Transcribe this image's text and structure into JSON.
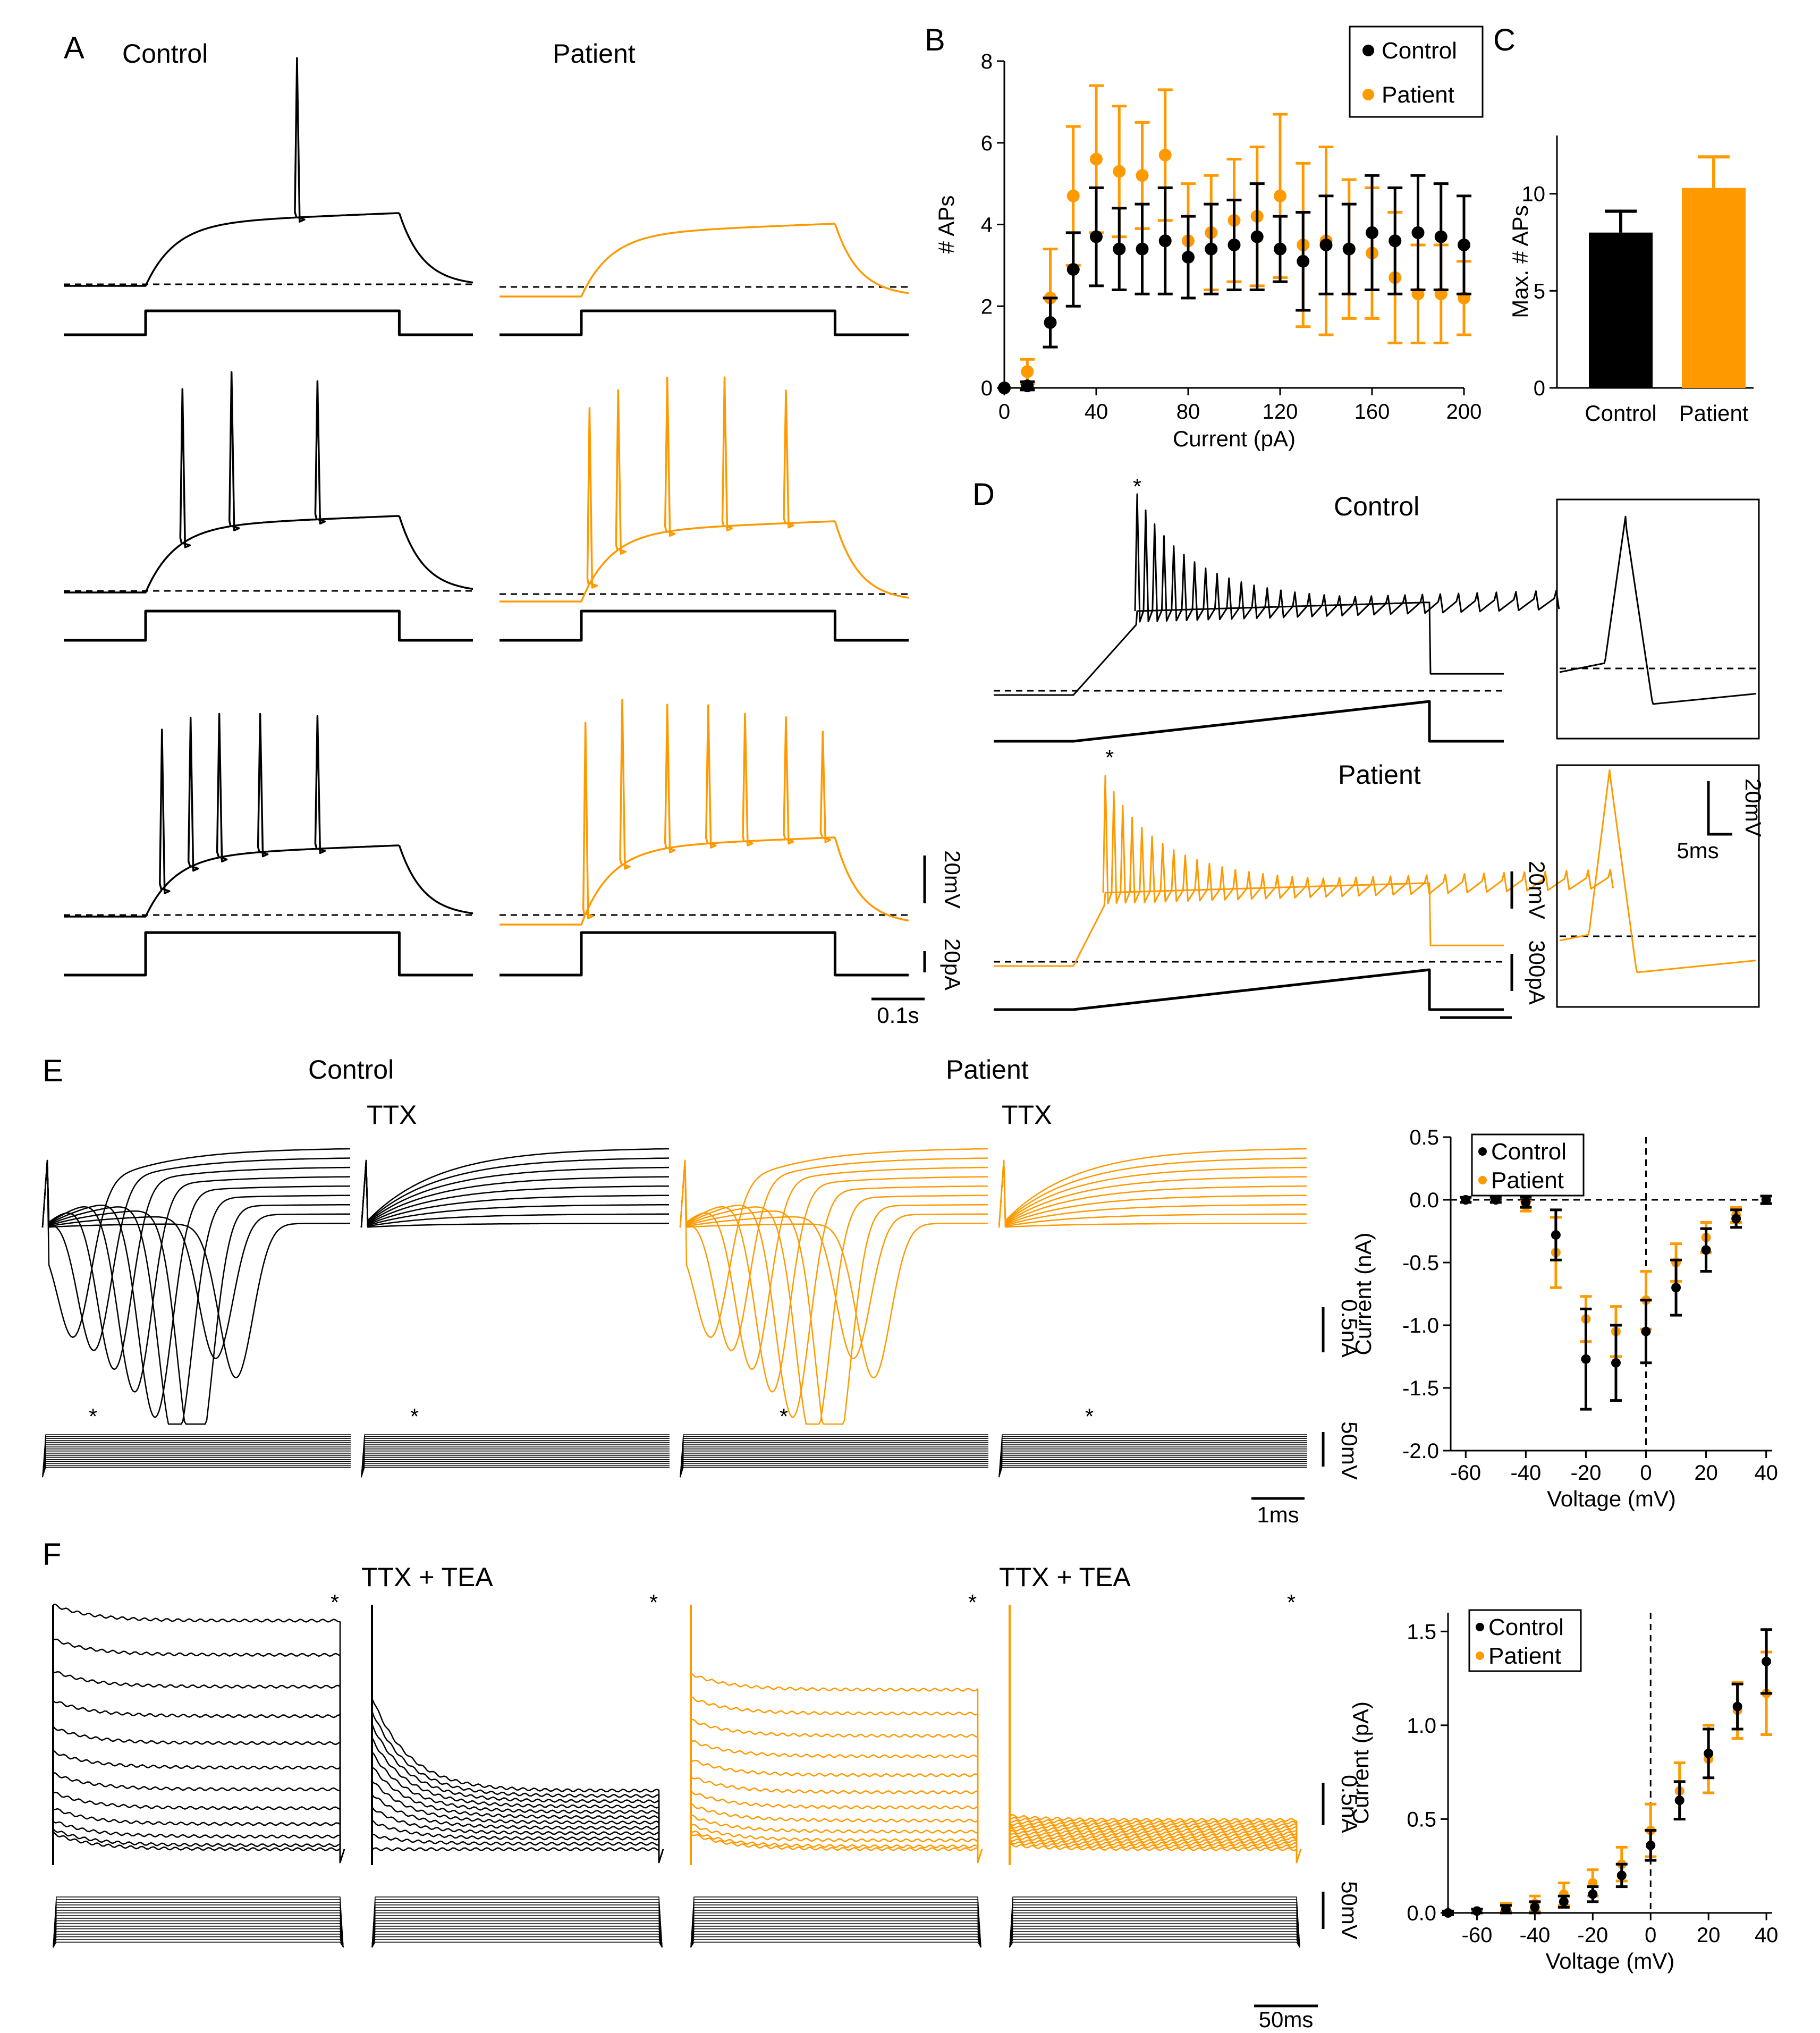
{
  "colors": {
    "control": "#000000",
    "patient": "#FF9900"
  },
  "panels": {
    "A": {
      "letter": "A",
      "control_title": "Control",
      "patient_title": "Patient",
      "scalebars": {
        "voltage": "20mV",
        "current": "20pA",
        "time": "0.1s"
      }
    },
    "D": {
      "letter": "D",
      "control_title": "Control",
      "patient_title": "Patient",
      "scalebars": {
        "voltage": "20mV",
        "current": "300pA",
        "inset_voltage": "20mV",
        "inset_time": "5ms"
      }
    },
    "E": {
      "letter": "E",
      "control_title": "Control",
      "patient_title": "Patient",
      "ttx_label_1": "TTX",
      "ttx_label_2": "TTX",
      "scalebars": {
        "current": "0.5nA",
        "voltage": "50mV",
        "time": "1ms"
      }
    },
    "F": {
      "letter": "F",
      "label_1": "TTX + TEA",
      "label_2": "TTX + TEA",
      "scalebars": {
        "current": "0.5nA",
        "voltage": "50mV",
        "time": "50ms"
      }
    }
  },
  "chart_data": [
    {
      "id": "B",
      "letter": "B",
      "type": "scatter",
      "xlabel": "Current (pA)",
      "ylabel": "# APs",
      "xlim": [
        0,
        200
      ],
      "ylim": [
        0,
        8
      ],
      "xticks": [
        0,
        40,
        80,
        120,
        160,
        200
      ],
      "yticks": [
        0,
        2,
        4,
        6,
        8
      ],
      "legend": "top-right",
      "series": [
        {
          "name": "Control",
          "color": "#000000",
          "x": [
            0,
            10,
            20,
            30,
            40,
            50,
            60,
            70,
            80,
            90,
            100,
            110,
            120,
            130,
            140,
            150,
            160,
            170,
            180,
            190,
            200
          ],
          "y": [
            0,
            0.05,
            1.6,
            2.9,
            3.7,
            3.4,
            3.4,
            3.6,
            3.2,
            3.4,
            3.5,
            3.7,
            3.4,
            3.1,
            3.5,
            3.4,
            3.8,
            3.6,
            3.8,
            3.7,
            3.5
          ],
          "err": [
            0,
            0.1,
            0.6,
            0.9,
            1.2,
            1.0,
            1.1,
            1.3,
            1.0,
            1.1,
            1.1,
            1.3,
            0.8,
            1.2,
            1.2,
            1.1,
            1.4,
            1.3,
            1.4,
            1.3,
            1.2
          ]
        },
        {
          "name": "Patient",
          "color": "#FF9900",
          "x": [
            0,
            10,
            20,
            30,
            40,
            50,
            60,
            70,
            80,
            90,
            100,
            110,
            120,
            130,
            140,
            150,
            160,
            170,
            180,
            190,
            200
          ],
          "y": [
            0,
            0.4,
            2.2,
            4.7,
            5.6,
            5.3,
            5.2,
            5.7,
            3.6,
            3.8,
            4.1,
            4.2,
            4.7,
            3.5,
            3.6,
            3.4,
            3.3,
            2.7,
            2.3,
            2.3,
            2.2
          ],
          "err": [
            0,
            0.3,
            1.2,
            1.7,
            1.8,
            1.6,
            1.3,
            1.6,
            1.4,
            1.4,
            1.5,
            1.7,
            2.0,
            2.0,
            2.3,
            1.7,
            1.6,
            1.6,
            1.2,
            1.2,
            0.9
          ]
        }
      ]
    },
    {
      "id": "C",
      "letter": "C",
      "type": "bar",
      "ylabel": "Max. # APs",
      "categories": [
        "Control",
        "Patient"
      ],
      "values": [
        8.0,
        10.3
      ],
      "err": [
        1.1,
        1.6
      ],
      "ylim": [
        0,
        13
      ],
      "yticks": [
        0,
        5,
        10
      ]
    },
    {
      "id": "E_IV",
      "type": "line",
      "xlabel": "Voltage (mV)",
      "ylabel": "Current (nA)",
      "xlim": [
        -65,
        42
      ],
      "ylim": [
        -2.0,
        0.5
      ],
      "xticks": [
        -60,
        -40,
        -20,
        0,
        20,
        40
      ],
      "yticks": [
        0.5,
        0.0,
        -0.5,
        -1.0,
        -1.5,
        -2.0
      ],
      "ytick_labels": [
        "0.5",
        "0.0",
        "-0.5",
        "-1.0",
        "-1.5",
        "-2.0"
      ],
      "legend": "top-left",
      "series": [
        {
          "name": "Control",
          "color": "#000000",
          "x": [
            -60,
            -50,
            -40,
            -30,
            -20,
            -10,
            0,
            10,
            20,
            30,
            40
          ],
          "y": [
            0,
            0,
            -0.02,
            -0.28,
            -1.27,
            -1.3,
            -1.05,
            -0.7,
            -0.4,
            -0.15,
            0
          ],
          "err": [
            0.02,
            0.02,
            0.04,
            0.2,
            0.4,
            0.3,
            0.25,
            0.22,
            0.17,
            0.07,
            0.03
          ]
        },
        {
          "name": "Patient",
          "color": "#FF9900",
          "x": [
            -60,
            -50,
            -40,
            -30,
            -20,
            -10,
            0,
            10,
            20,
            30,
            40
          ],
          "y": [
            0,
            0,
            -0.05,
            -0.42,
            -0.95,
            -1.05,
            -0.8,
            -0.5,
            -0.3,
            -0.12,
            0
          ],
          "err": [
            0.02,
            0.02,
            0.04,
            0.28,
            0.18,
            0.2,
            0.23,
            0.15,
            0.12,
            0.06,
            0.03
          ]
        }
      ]
    },
    {
      "id": "F_IV",
      "type": "line",
      "xlabel": "Voltage (mV)",
      "ylabel": "Current (pA)",
      "xlim": [
        -70,
        42
      ],
      "ylim": [
        0,
        1.6
      ],
      "xticks": [
        -60,
        -40,
        -20,
        0,
        20,
        40
      ],
      "yticks": [
        0.0,
        0.5,
        1.0,
        1.5
      ],
      "ytick_labels": [
        "0.0",
        "0.5",
        "1.0",
        "1.5"
      ],
      "legend": "top-left",
      "series": [
        {
          "name": "Control",
          "color": "#000000",
          "x": [
            -70,
            -60,
            -50,
            -40,
            -30,
            -20,
            -10,
            0,
            10,
            20,
            30,
            40
          ],
          "y": [
            0,
            0.01,
            0.02,
            0.03,
            0.06,
            0.1,
            0.2,
            0.36,
            0.6,
            0.85,
            1.1,
            1.34
          ],
          "err": [
            0.01,
            0.01,
            0.02,
            0.03,
            0.03,
            0.04,
            0.06,
            0.08,
            0.1,
            0.13,
            0.12,
            0.17
          ]
        },
        {
          "name": "Patient",
          "color": "#FF9900",
          "x": [
            -70,
            -60,
            -50,
            -40,
            -30,
            -20,
            -10,
            0,
            10,
            20,
            30,
            40
          ],
          "y": [
            0,
            0.01,
            0.03,
            0.05,
            0.1,
            0.16,
            0.26,
            0.44,
            0.65,
            0.82,
            1.08,
            1.17
          ],
          "err": [
            0.01,
            0.01,
            0.02,
            0.04,
            0.06,
            0.07,
            0.09,
            0.14,
            0.15,
            0.18,
            0.15,
            0.22
          ]
        }
      ]
    }
  ]
}
